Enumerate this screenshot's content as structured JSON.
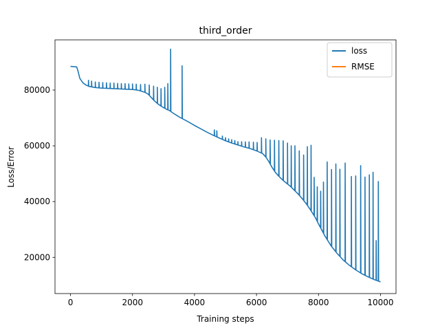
{
  "chart_data": {
    "type": "line",
    "title": "third_order",
    "xlabel": "Training steps",
    "ylabel": "Loss/Error",
    "xlim": [
      -500,
      10500
    ],
    "ylim": [
      7000,
      98000
    ],
    "xticks": [
      0,
      2000,
      4000,
      6000,
      8000,
      10000
    ],
    "yticks": [
      20000,
      40000,
      60000,
      80000
    ],
    "grid": false,
    "legend_position": "top-right",
    "series": [
      {
        "name": "loss",
        "color": "#1f77b4",
        "x": [
          0,
          100,
          200,
          250,
          300,
          400,
          500,
          600,
          800,
          1000,
          1200,
          1400,
          1600,
          1800,
          2000,
          2200,
          2400,
          2500,
          2600,
          2700,
          2800,
          2900,
          3000,
          3100,
          3200,
          3300,
          3400,
          3500,
          3600,
          3800,
          4000,
          4200,
          4400,
          4600,
          4800,
          5000,
          5200,
          5400,
          5600,
          5800,
          6000,
          6200,
          6300,
          6400,
          6500,
          6600,
          6700,
          6800,
          6900,
          7000,
          7100,
          7200,
          7300,
          7400,
          7500,
          7600,
          7700,
          7800,
          7900,
          8000,
          8200,
          8400,
          8600,
          8800,
          9000,
          9200,
          9400,
          9600,
          9800,
          10000
        ],
        "y": [
          88500,
          88400,
          88300,
          86500,
          84200,
          82600,
          81800,
          81300,
          80900,
          80700,
          80600,
          80500,
          80400,
          80300,
          80200,
          79900,
          79200,
          78600,
          77400,
          76200,
          75200,
          74400,
          73700,
          73100,
          72600,
          71800,
          71100,
          70400,
          69800,
          68600,
          67300,
          66100,
          64900,
          63800,
          62800,
          61800,
          61000,
          60300,
          59600,
          59000,
          58200,
          57200,
          56000,
          54300,
          52300,
          50600,
          49300,
          48200,
          47200,
          46300,
          45400,
          44300,
          43200,
          42000,
          40700,
          39300,
          37700,
          36000,
          34200,
          32000,
          27800,
          24200,
          21400,
          19000,
          17100,
          15500,
          14100,
          13000,
          12000,
          11200
        ],
        "spikes": [
          {
            "x": 580,
            "y": 83500
          },
          {
            "x": 680,
            "y": 83200
          },
          {
            "x": 800,
            "y": 82900
          },
          {
            "x": 920,
            "y": 82800
          },
          {
            "x": 1040,
            "y": 82700
          },
          {
            "x": 1160,
            "y": 82600
          },
          {
            "x": 1280,
            "y": 82500
          },
          {
            "x": 1400,
            "y": 82500
          },
          {
            "x": 1520,
            "y": 82400
          },
          {
            "x": 1640,
            "y": 82300
          },
          {
            "x": 1760,
            "y": 82300
          },
          {
            "x": 1880,
            "y": 82200
          },
          {
            "x": 2000,
            "y": 82200
          },
          {
            "x": 2120,
            "y": 82100
          },
          {
            "x": 2260,
            "y": 82000
          },
          {
            "x": 2400,
            "y": 82100
          },
          {
            "x": 2540,
            "y": 81800
          },
          {
            "x": 2680,
            "y": 81400
          },
          {
            "x": 2800,
            "y": 81000
          },
          {
            "x": 2920,
            "y": 80500
          },
          {
            "x": 3040,
            "y": 81000
          },
          {
            "x": 3140,
            "y": 82300
          },
          {
            "x": 3230,
            "y": 94700
          },
          {
            "x": 3600,
            "y": 88700
          },
          {
            "x": 4640,
            "y": 65700
          },
          {
            "x": 4720,
            "y": 65400
          },
          {
            "x": 4900,
            "y": 63500
          },
          {
            "x": 5000,
            "y": 62900
          },
          {
            "x": 5100,
            "y": 62500
          },
          {
            "x": 5200,
            "y": 62200
          },
          {
            "x": 5300,
            "y": 61900
          },
          {
            "x": 5400,
            "y": 61500
          },
          {
            "x": 5520,
            "y": 61500
          },
          {
            "x": 5640,
            "y": 61400
          },
          {
            "x": 5760,
            "y": 61400
          },
          {
            "x": 5900,
            "y": 61300
          },
          {
            "x": 6020,
            "y": 61200
          },
          {
            "x": 6160,
            "y": 62900
          },
          {
            "x": 6300,
            "y": 62500
          },
          {
            "x": 6440,
            "y": 62100
          },
          {
            "x": 6580,
            "y": 62000
          },
          {
            "x": 6720,
            "y": 61900
          },
          {
            "x": 6860,
            "y": 61800
          },
          {
            "x": 7000,
            "y": 61000
          },
          {
            "x": 7120,
            "y": 60000
          },
          {
            "x": 7240,
            "y": 60000
          },
          {
            "x": 7380,
            "y": 58200
          },
          {
            "x": 7520,
            "y": 56700
          },
          {
            "x": 7640,
            "y": 59700
          },
          {
            "x": 7760,
            "y": 60200
          },
          {
            "x": 7860,
            "y": 48700
          },
          {
            "x": 7960,
            "y": 45300
          },
          {
            "x": 8070,
            "y": 43700
          },
          {
            "x": 8160,
            "y": 47000
          },
          {
            "x": 8280,
            "y": 54200
          },
          {
            "x": 8420,
            "y": 51500
          },
          {
            "x": 8560,
            "y": 53500
          },
          {
            "x": 8690,
            "y": 51600
          },
          {
            "x": 8860,
            "y": 53800
          },
          {
            "x": 9060,
            "y": 49000
          },
          {
            "x": 9200,
            "y": 49200
          },
          {
            "x": 9360,
            "y": 52900
          },
          {
            "x": 9500,
            "y": 48800
          },
          {
            "x": 9640,
            "y": 49600
          },
          {
            "x": 9760,
            "y": 50500
          },
          {
            "x": 9860,
            "y": 26000
          },
          {
            "x": 9930,
            "y": 47200
          }
        ]
      },
      {
        "name": "RMSE",
        "color": "#ff7f0e",
        "x": [
          0,
          10000
        ],
        "y": [
          0,
          0
        ]
      }
    ]
  }
}
